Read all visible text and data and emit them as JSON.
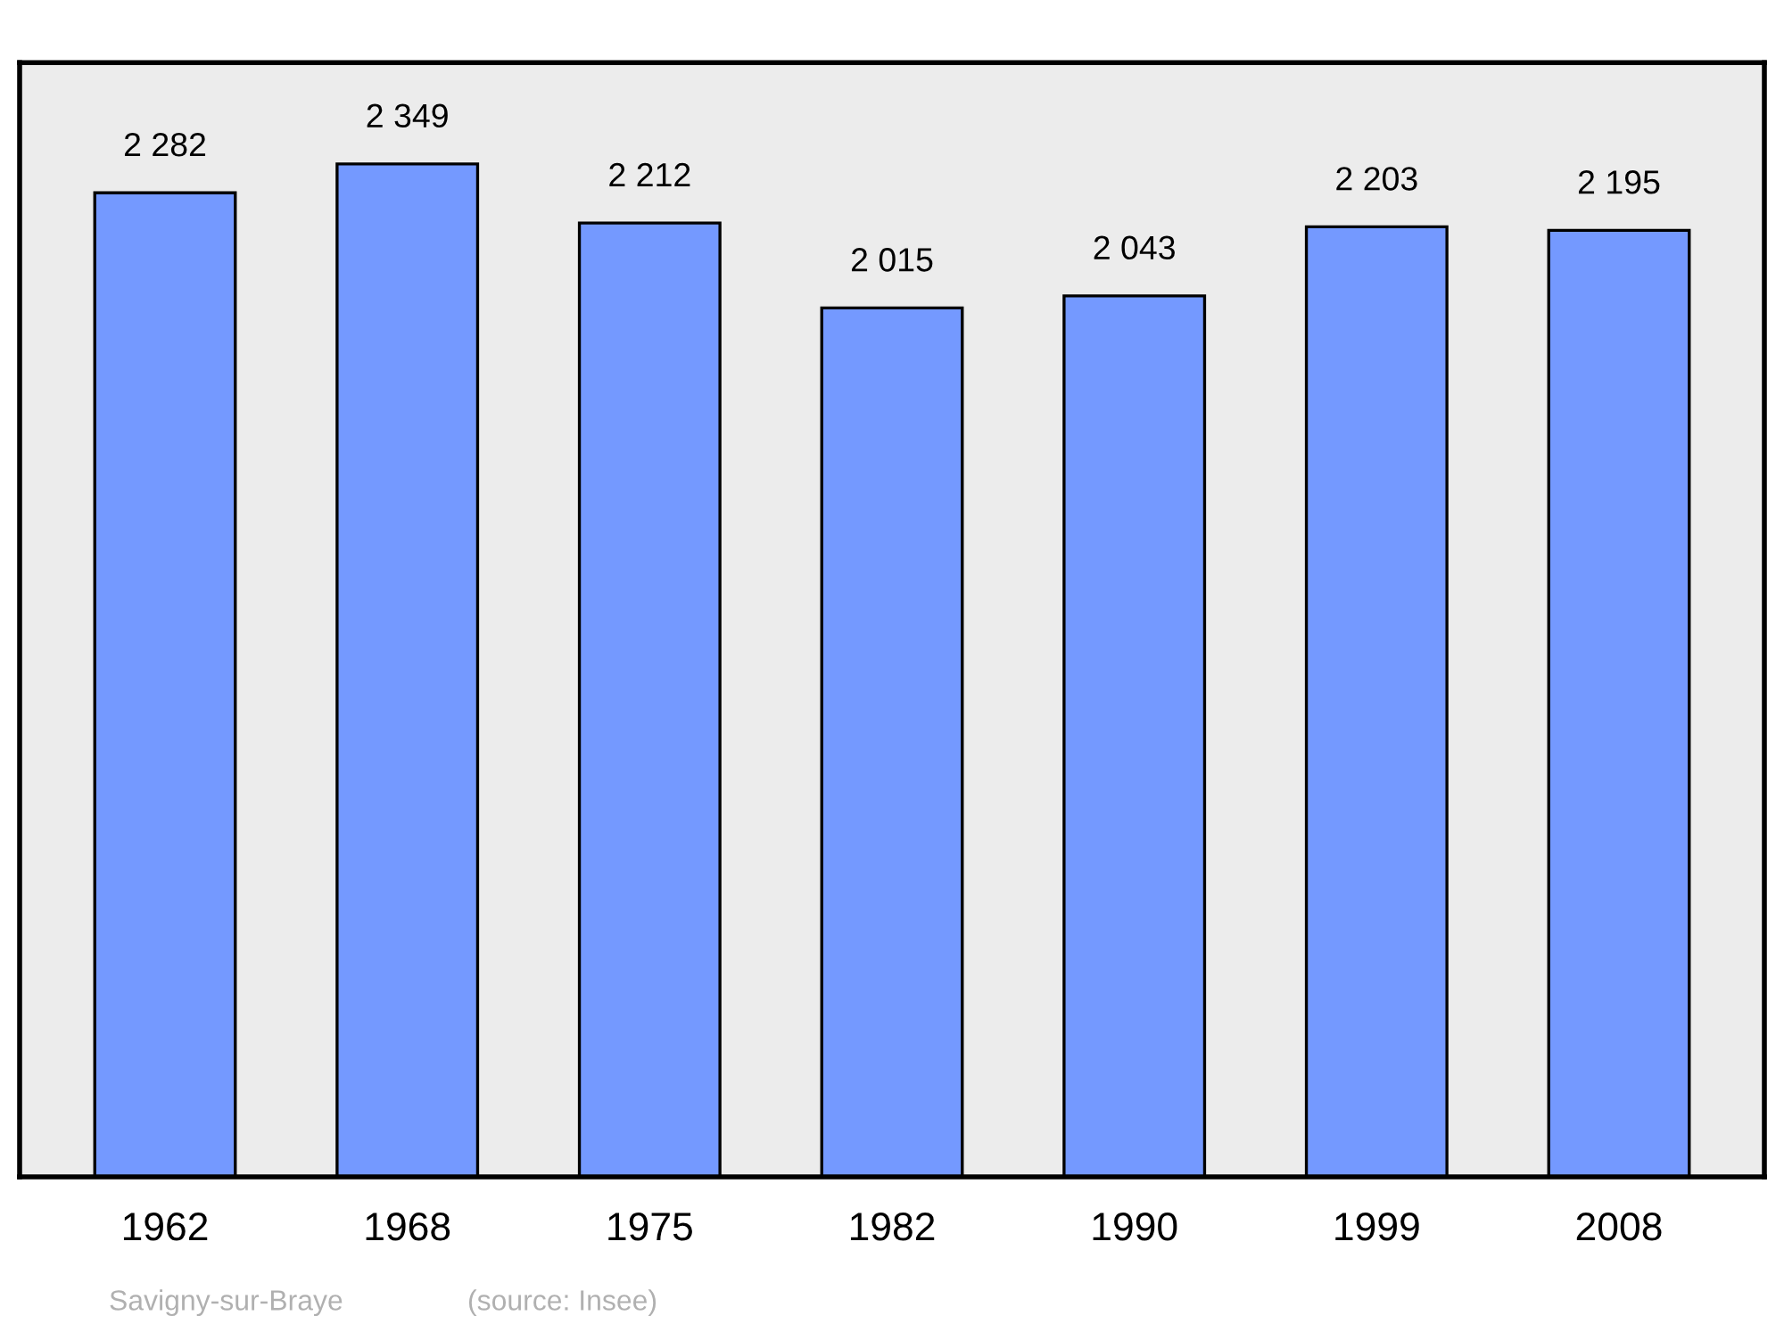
{
  "chart_data": {
    "type": "bar",
    "categories": [
      "1962",
      "1968",
      "1975",
      "1982",
      "1990",
      "1999",
      "2008"
    ],
    "values": [
      2282,
      2349,
      2212,
      2015,
      2043,
      2203,
      2195
    ],
    "value_labels": [
      "2 282",
      "2 349",
      "2 212",
      "2 015",
      "2 043",
      "2 203",
      "2 195"
    ],
    "color": "#7499ff",
    "tick_labels": "x",
    "grid": false,
    "legend": false,
    "annotations": [
      "Savigny-sur-Braye",
      "(source: Insee)"
    ]
  }
}
